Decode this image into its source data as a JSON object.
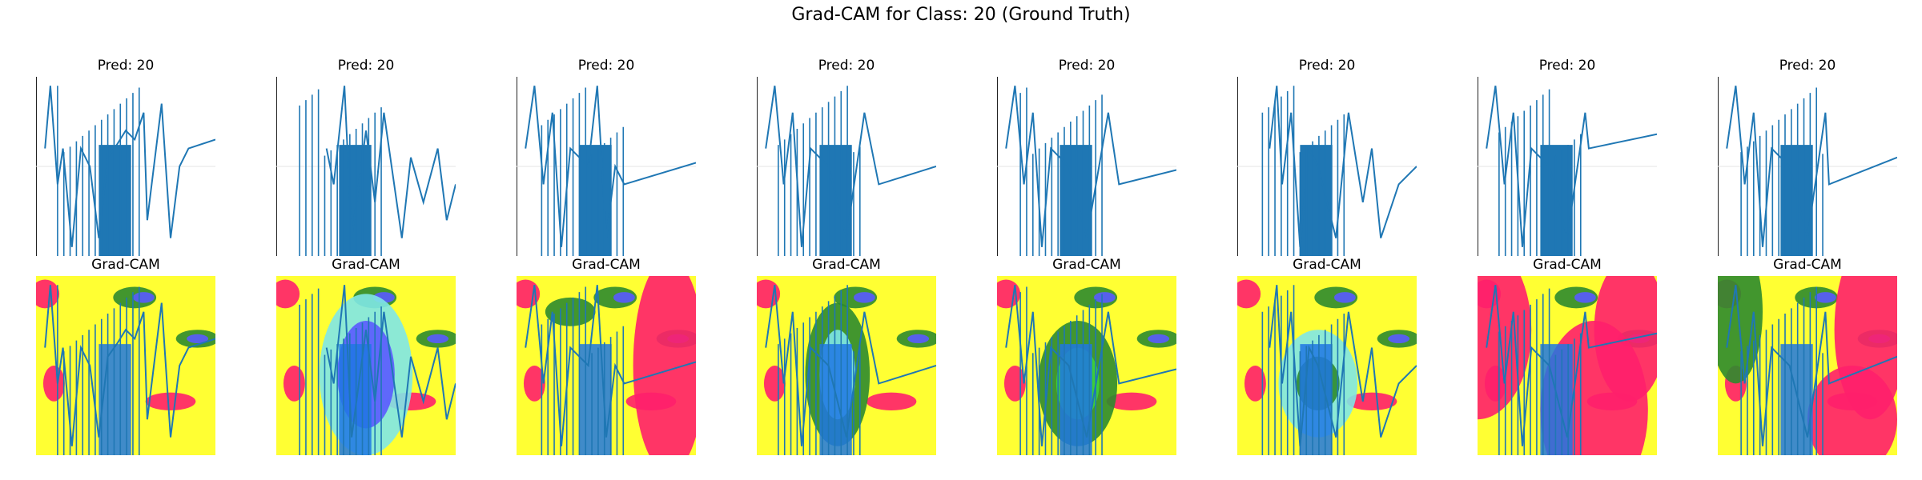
{
  "figure": {
    "title": "Grad-CAM for Class: 20 (Ground Truth)",
    "top_titles": [
      "Pred: 20",
      "Pred: 20",
      "Pred: 20",
      "Pred: 20",
      "Pred: 20",
      "Pred: 20",
      "Pred: 20",
      "Pred: 20"
    ],
    "bottom_titles": [
      "Grad-CAM",
      "Grad-CAM",
      "Grad-CAM",
      "Grad-CAM",
      "Grad-CAM",
      "Grad-CAM",
      "Grad-CAM",
      "Grad-CAM"
    ]
  },
  "colors": {
    "line": "#1f77b4",
    "heat_low": "#ff1f6b",
    "heat_mid": "#ffff33",
    "heat_green": "#2e8b2e",
    "heat_blue": "#5a5aff",
    "heat_cyan": "#7fe7e7"
  },
  "chart_data": {
    "type": "line",
    "panels": 8,
    "rows": [
      "prediction",
      "gradcam"
    ],
    "series": [
      {
        "segments": [
          [
            0.05,
            0.6
          ],
          [
            0.08,
            0.95
          ],
          [
            0.12,
            0.4
          ],
          [
            0.15,
            0.6
          ],
          [
            0.2,
            0.05
          ],
          [
            0.25,
            0.6
          ],
          [
            0.3,
            0.5
          ],
          [
            0.35,
            0.1
          ],
          [
            0.4,
            0.55
          ],
          [
            0.45,
            0.62
          ],
          [
            0.5,
            0.7
          ],
          [
            0.55,
            0.65
          ],
          [
            0.6,
            0.8
          ],
          [
            0.62,
            0.2
          ],
          [
            0.7,
            0.85
          ],
          [
            0.75,
            0.1
          ],
          [
            0.8,
            0.5
          ],
          [
            0.85,
            0.6
          ],
          [
            1.0,
            0.65
          ]
        ]
      },
      {
        "segments": [
          [
            0.28,
            0.6
          ],
          [
            0.32,
            0.4
          ],
          [
            0.38,
            0.95
          ],
          [
            0.42,
            0.1
          ],
          [
            0.5,
            0.7
          ],
          [
            0.55,
            0.3
          ],
          [
            0.6,
            0.8
          ],
          [
            0.7,
            0.1
          ],
          [
            0.75,
            0.55
          ],
          [
            0.82,
            0.3
          ],
          [
            0.9,
            0.6
          ],
          [
            0.95,
            0.2
          ],
          [
            1.0,
            0.4
          ]
        ]
      },
      {
        "segments": [
          [
            0.05,
            0.6
          ],
          [
            0.1,
            0.95
          ],
          [
            0.15,
            0.4
          ],
          [
            0.2,
            0.8
          ],
          [
            0.25,
            0.05
          ],
          [
            0.3,
            0.6
          ],
          [
            0.4,
            0.5
          ],
          [
            0.45,
            0.95
          ],
          [
            0.5,
            0.1
          ],
          [
            0.55,
            0.5
          ],
          [
            0.6,
            0.4
          ],
          [
            1.0,
            0.52
          ]
        ]
      },
      {
        "segments": [
          [
            0.05,
            0.6
          ],
          [
            0.1,
            0.95
          ],
          [
            0.15,
            0.4
          ],
          [
            0.2,
            0.8
          ],
          [
            0.25,
            0.05
          ],
          [
            0.3,
            0.6
          ],
          [
            0.4,
            0.5
          ],
          [
            0.5,
            0.1
          ],
          [
            0.6,
            0.8
          ],
          [
            0.68,
            0.4
          ],
          [
            1.0,
            0.5
          ]
        ]
      },
      {
        "segments": [
          [
            0.05,
            0.6
          ],
          [
            0.1,
            0.95
          ],
          [
            0.15,
            0.4
          ],
          [
            0.2,
            0.8
          ],
          [
            0.25,
            0.05
          ],
          [
            0.3,
            0.6
          ],
          [
            0.4,
            0.5
          ],
          [
            0.5,
            0.1
          ],
          [
            0.62,
            0.8
          ],
          [
            0.68,
            0.4
          ],
          [
            1.0,
            0.48
          ]
        ]
      },
      {
        "segments": [
          [
            0.18,
            0.6
          ],
          [
            0.22,
            0.95
          ],
          [
            0.25,
            0.4
          ],
          [
            0.3,
            0.8
          ],
          [
            0.35,
            0.05
          ],
          [
            0.4,
            0.6
          ],
          [
            0.45,
            0.5
          ],
          [
            0.55,
            0.1
          ],
          [
            0.62,
            0.8
          ],
          [
            0.7,
            0.3
          ],
          [
            0.75,
            0.6
          ],
          [
            0.8,
            0.1
          ],
          [
            0.9,
            0.4
          ],
          [
            1.0,
            0.5
          ]
        ]
      },
      {
        "segments": [
          [
            0.05,
            0.6
          ],
          [
            0.1,
            0.95
          ],
          [
            0.15,
            0.4
          ],
          [
            0.2,
            0.8
          ],
          [
            0.25,
            0.05
          ],
          [
            0.3,
            0.6
          ],
          [
            0.4,
            0.5
          ],
          [
            0.5,
            0.1
          ],
          [
            0.6,
            0.8
          ],
          [
            0.62,
            0.6
          ],
          [
            1.0,
            0.68
          ]
        ]
      },
      {
        "segments": [
          [
            0.05,
            0.6
          ],
          [
            0.1,
            0.95
          ],
          [
            0.15,
            0.4
          ],
          [
            0.2,
            0.8
          ],
          [
            0.25,
            0.05
          ],
          [
            0.3,
            0.6
          ],
          [
            0.4,
            0.5
          ],
          [
            0.5,
            0.1
          ],
          [
            0.6,
            0.8
          ],
          [
            0.62,
            0.4
          ],
          [
            1.0,
            0.55
          ]
        ]
      }
    ]
  }
}
